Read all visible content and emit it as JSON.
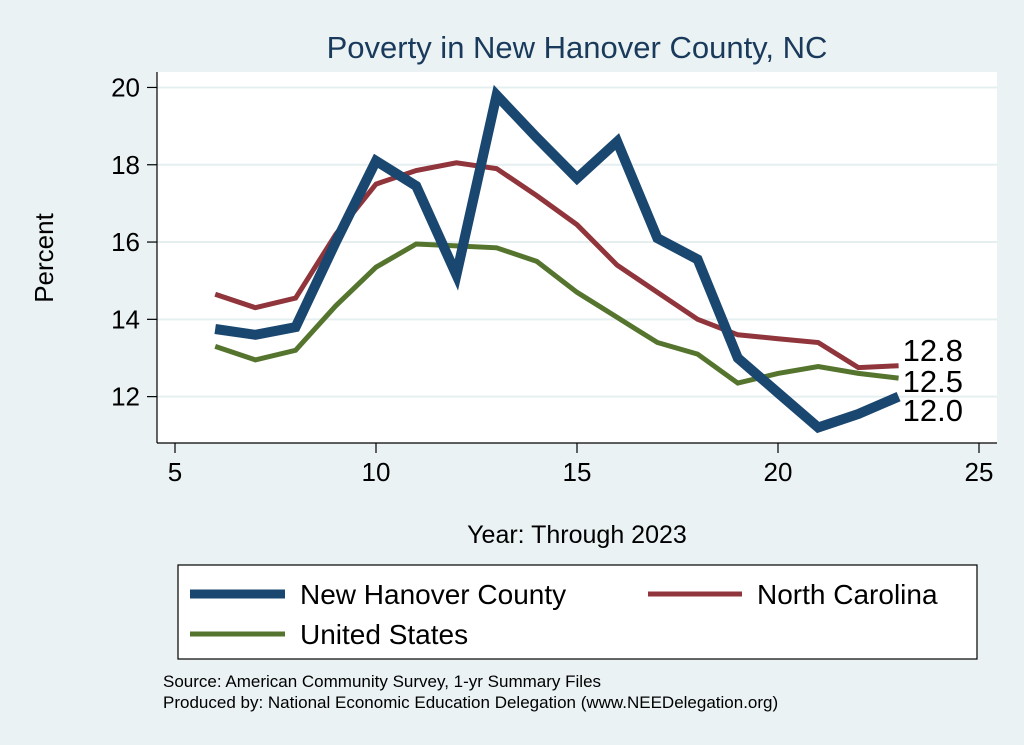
{
  "chart_data": {
    "type": "line",
    "title": "Poverty in New Hanover County, NC",
    "xlabel": "Year: Through 2023",
    "ylabel": "Percent",
    "xlim": [
      5,
      25
    ],
    "ylim": [
      10.8,
      20.4
    ],
    "xticks": [
      5,
      10,
      15,
      20,
      25
    ],
    "yticks": [
      12,
      14,
      16,
      18,
      20
    ],
    "grid": true,
    "x": [
      6,
      7,
      8,
      9,
      10,
      11,
      12,
      13,
      14,
      15,
      16,
      17,
      18,
      19,
      20,
      21,
      22,
      23
    ],
    "series": [
      {
        "name": "New Hanover County",
        "color": "#1a476f",
        "values": [
          13.75,
          13.6,
          13.8,
          16.0,
          18.1,
          17.45,
          15.15,
          19.8,
          18.7,
          17.65,
          18.6,
          16.1,
          15.55,
          13.0,
          12.1,
          11.2,
          11.55,
          12.0
        ],
        "end_label": "12.0"
      },
      {
        "name": "North Carolina",
        "color": "#90353b",
        "values": [
          14.65,
          14.3,
          14.55,
          16.2,
          17.5,
          17.85,
          18.05,
          17.9,
          17.2,
          16.45,
          15.4,
          14.7,
          14.0,
          13.6,
          13.5,
          13.4,
          12.75,
          12.8
        ],
        "end_label": "12.8"
      },
      {
        "name": "United States",
        "color": "#55752f",
        "values": [
          13.3,
          12.95,
          13.2,
          14.35,
          15.35,
          15.95,
          15.9,
          15.85,
          15.5,
          14.7,
          14.05,
          13.4,
          13.1,
          12.35,
          12.6,
          12.78,
          12.6,
          12.48
        ],
        "end_label": "12.5"
      }
    ],
    "legend_position": "bottom",
    "notes": [
      "Source: American Community Survey, 1-yr Summary Files",
      "Produced by: National Economic Education Delegation (www.NEEDelegation.org)"
    ]
  }
}
